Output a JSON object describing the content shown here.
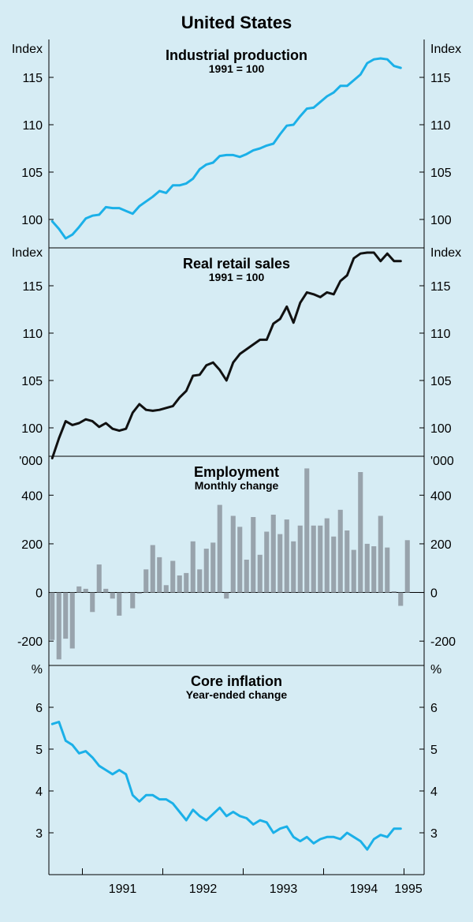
{
  "figure": {
    "title": "United States"
  },
  "x_axis": {
    "tick_labels": [
      "1991",
      "1992",
      "1993",
      "1994",
      "1995"
    ]
  },
  "colors": {
    "blue": "#1bb0e8",
    "black": "#111111",
    "bar": "#98a3ac",
    "background": "#d6ecf4"
  },
  "chart_data": [
    {
      "type": "line",
      "title": "Industrial production",
      "subtitle": "1991 = 100",
      "unit": "Index",
      "color": "blue",
      "ylim": [
        97,
        119
      ],
      "yticks": [
        100,
        105,
        110,
        115
      ],
      "x_start": "1990-08",
      "values": [
        99.8,
        99.0,
        98.0,
        98.4,
        99.2,
        100.1,
        100.4,
        100.5,
        101.3,
        101.2,
        101.2,
        100.9,
        100.6,
        101.4,
        101.9,
        102.4,
        103.0,
        102.8,
        103.6,
        103.6,
        103.8,
        104.3,
        105.3,
        105.8,
        106.0,
        106.7,
        106.8,
        106.8,
        106.6,
        106.9,
        107.3,
        107.5,
        107.8,
        108.0,
        109.0,
        109.9,
        110.0,
        110.9,
        111.7,
        111.8,
        112.4,
        113.0,
        113.4,
        114.1,
        114.1,
        114.7,
        115.3,
        116.5,
        116.9,
        117.0,
        116.9,
        116.2,
        116.0
      ]
    },
    {
      "type": "line",
      "title": "Real retail sales",
      "subtitle": "1991 = 100",
      "unit": "Index",
      "color": "black",
      "ylim": [
        97,
        119
      ],
      "yticks": [
        100,
        105,
        110,
        115
      ],
      "x_start": "1990-08",
      "values": [
        96.8,
        98.9,
        100.7,
        100.3,
        100.5,
        100.9,
        100.7,
        100.1,
        100.5,
        99.9,
        99.7,
        99.9,
        101.6,
        102.5,
        101.9,
        101.8,
        101.9,
        102.1,
        102.3,
        103.2,
        103.9,
        105.5,
        105.6,
        106.6,
        106.9,
        106.1,
        105.0,
        106.9,
        107.8,
        108.3,
        108.8,
        109.3,
        109.3,
        111.0,
        111.5,
        112.8,
        111.1,
        113.2,
        114.3,
        114.1,
        113.8,
        114.3,
        114.1,
        115.5,
        116.1,
        117.9,
        118.4,
        118.5,
        118.5,
        117.6,
        118.4,
        117.6,
        117.6
      ]
    },
    {
      "type": "bar",
      "title": "Employment",
      "subtitle": "Monthly change",
      "unit": "'000",
      "color": "bar",
      "ylim": [
        -300,
        560
      ],
      "yticks": [
        -200,
        0,
        200,
        400
      ],
      "x_start": "1990-08",
      "values": [
        -195,
        -275,
        -190,
        -230,
        25,
        15,
        -80,
        115,
        15,
        -25,
        -95,
        0,
        -65,
        -5,
        95,
        195,
        145,
        30,
        130,
        70,
        80,
        210,
        95,
        180,
        205,
        360,
        -25,
        315,
        270,
        135,
        310,
        155,
        250,
        320,
        240,
        300,
        210,
        275,
        510,
        275,
        275,
        305,
        230,
        340,
        255,
        175,
        495,
        200,
        190,
        315,
        185,
        5,
        -55,
        215
      ]
    },
    {
      "type": "line",
      "title": "Core inflation",
      "subtitle": "Year-ended change",
      "unit": "%",
      "color": "blue",
      "ylim": [
        2.0,
        7.0
      ],
      "yticks": [
        3,
        4,
        5,
        6
      ],
      "x_start": "1990-08",
      "values": [
        5.6,
        5.65,
        5.2,
        5.1,
        4.9,
        4.95,
        4.8,
        4.6,
        4.5,
        4.4,
        4.5,
        4.4,
        3.9,
        3.75,
        3.9,
        3.9,
        3.8,
        3.8,
        3.7,
        3.5,
        3.3,
        3.55,
        3.4,
        3.3,
        3.45,
        3.6,
        3.4,
        3.5,
        3.4,
        3.35,
        3.2,
        3.3,
        3.25,
        3.0,
        3.1,
        3.15,
        2.9,
        2.8,
        2.9,
        2.75,
        2.85,
        2.9,
        2.9,
        2.85,
        3.0,
        2.9,
        2.8,
        2.6,
        2.85,
        2.95,
        2.9,
        3.1,
        3.1
      ]
    }
  ]
}
